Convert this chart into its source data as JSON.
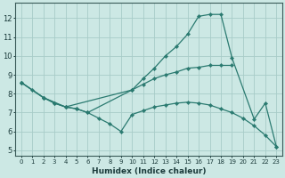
{
  "bg_color": "#cce8e4",
  "line_color": "#2a7a70",
  "grid_color": "#a8ccc8",
  "xlabel": "Humidex (Indice chaleur)",
  "xlim": [
    -0.5,
    23.5
  ],
  "ylim": [
    4.7,
    12.8
  ],
  "xticks": [
    0,
    1,
    2,
    3,
    4,
    5,
    6,
    7,
    8,
    9,
    10,
    11,
    12,
    13,
    14,
    15,
    16,
    17,
    18,
    19,
    20,
    21,
    22,
    23
  ],
  "yticks": [
    5,
    6,
    7,
    8,
    9,
    10,
    11,
    12
  ],
  "series": [
    {
      "x": [
        0,
        1,
        2,
        3,
        4,
        5,
        6,
        7,
        8,
        9,
        10,
        11,
        12,
        13,
        14,
        15,
        16,
        17,
        18,
        19,
        20,
        21,
        22,
        23
      ],
      "y": [
        8.6,
        8.2,
        7.8,
        7.5,
        7.3,
        7.2,
        7.0,
        6.7,
        6.4,
        6.0,
        6.9,
        7.1,
        7.3,
        7.4,
        7.5,
        7.55,
        7.5,
        7.4,
        7.2,
        7.0,
        6.7,
        6.3,
        5.8,
        5.2
      ]
    },
    {
      "x": [
        0,
        2,
        3,
        4,
        5,
        6,
        10,
        11,
        12,
        13,
        14,
        15,
        16,
        17,
        18,
        19
      ],
      "y": [
        8.6,
        7.8,
        7.5,
        7.3,
        7.2,
        7.0,
        8.2,
        8.5,
        8.8,
        9.0,
        9.15,
        9.35,
        9.4,
        9.5,
        9.5,
        9.5
      ]
    },
    {
      "x": [
        0,
        2,
        4,
        10,
        11,
        12,
        13,
        14,
        15,
        16,
        17,
        18,
        19,
        21,
        22,
        23
      ],
      "y": [
        8.6,
        7.8,
        7.3,
        8.2,
        8.8,
        9.35,
        10.0,
        10.5,
        11.15,
        12.1,
        12.2,
        12.2,
        9.9,
        6.65,
        7.5,
        5.2
      ]
    }
  ]
}
